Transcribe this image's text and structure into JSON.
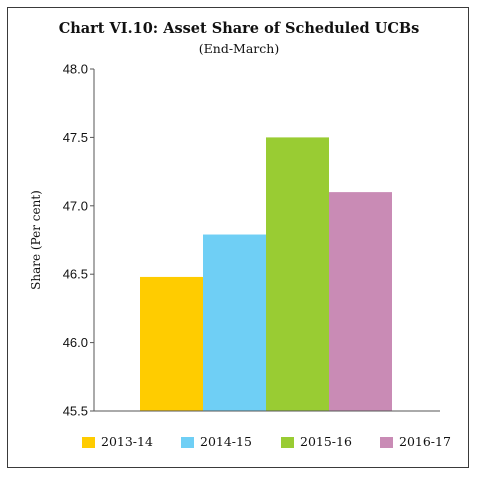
{
  "chart_data": {
    "type": "bar",
    "title": "Chart VI.10: Asset Share of Scheduled UCBs",
    "subtitle": "(End-March)",
    "xlabel": "",
    "ylabel": "Share (Per cent)",
    "categories": [
      "2013-14",
      "2014-15",
      "2015-16",
      "2016-17"
    ],
    "values": [
      46.48,
      46.79,
      47.5,
      47.1
    ],
    "colors": [
      "#FFCC00",
      "#6FCFF5",
      "#99CC33",
      "#C98BB5"
    ],
    "ylim": [
      45.5,
      48.0
    ],
    "yticks": [
      "45.5",
      "46.0",
      "46.5",
      "47.0",
      "47.5",
      "48.0"
    ],
    "grid": false,
    "legend_position": "bottom"
  }
}
